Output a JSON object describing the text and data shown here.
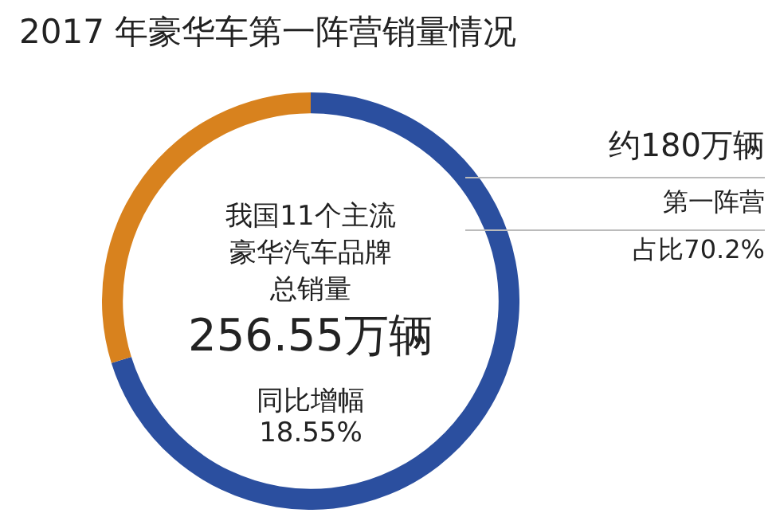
{
  "chart_data": {
    "type": "donut",
    "title": "2017 年豪华车第一阵营销量情况",
    "categories": [
      null,
      null
    ],
    "values": [
      70.2,
      29.8
    ],
    "colors": [
      "#2b4f9f",
      "#d8821e"
    ],
    "annotations": [
      "我国11个主流",
      "豪华汽车品牌",
      "总销量",
      "256.55万辆",
      "同比增幅",
      "18.55%",
      "约180万辆",
      "第一阵营",
      "占比70.2%"
    ]
  }
}
